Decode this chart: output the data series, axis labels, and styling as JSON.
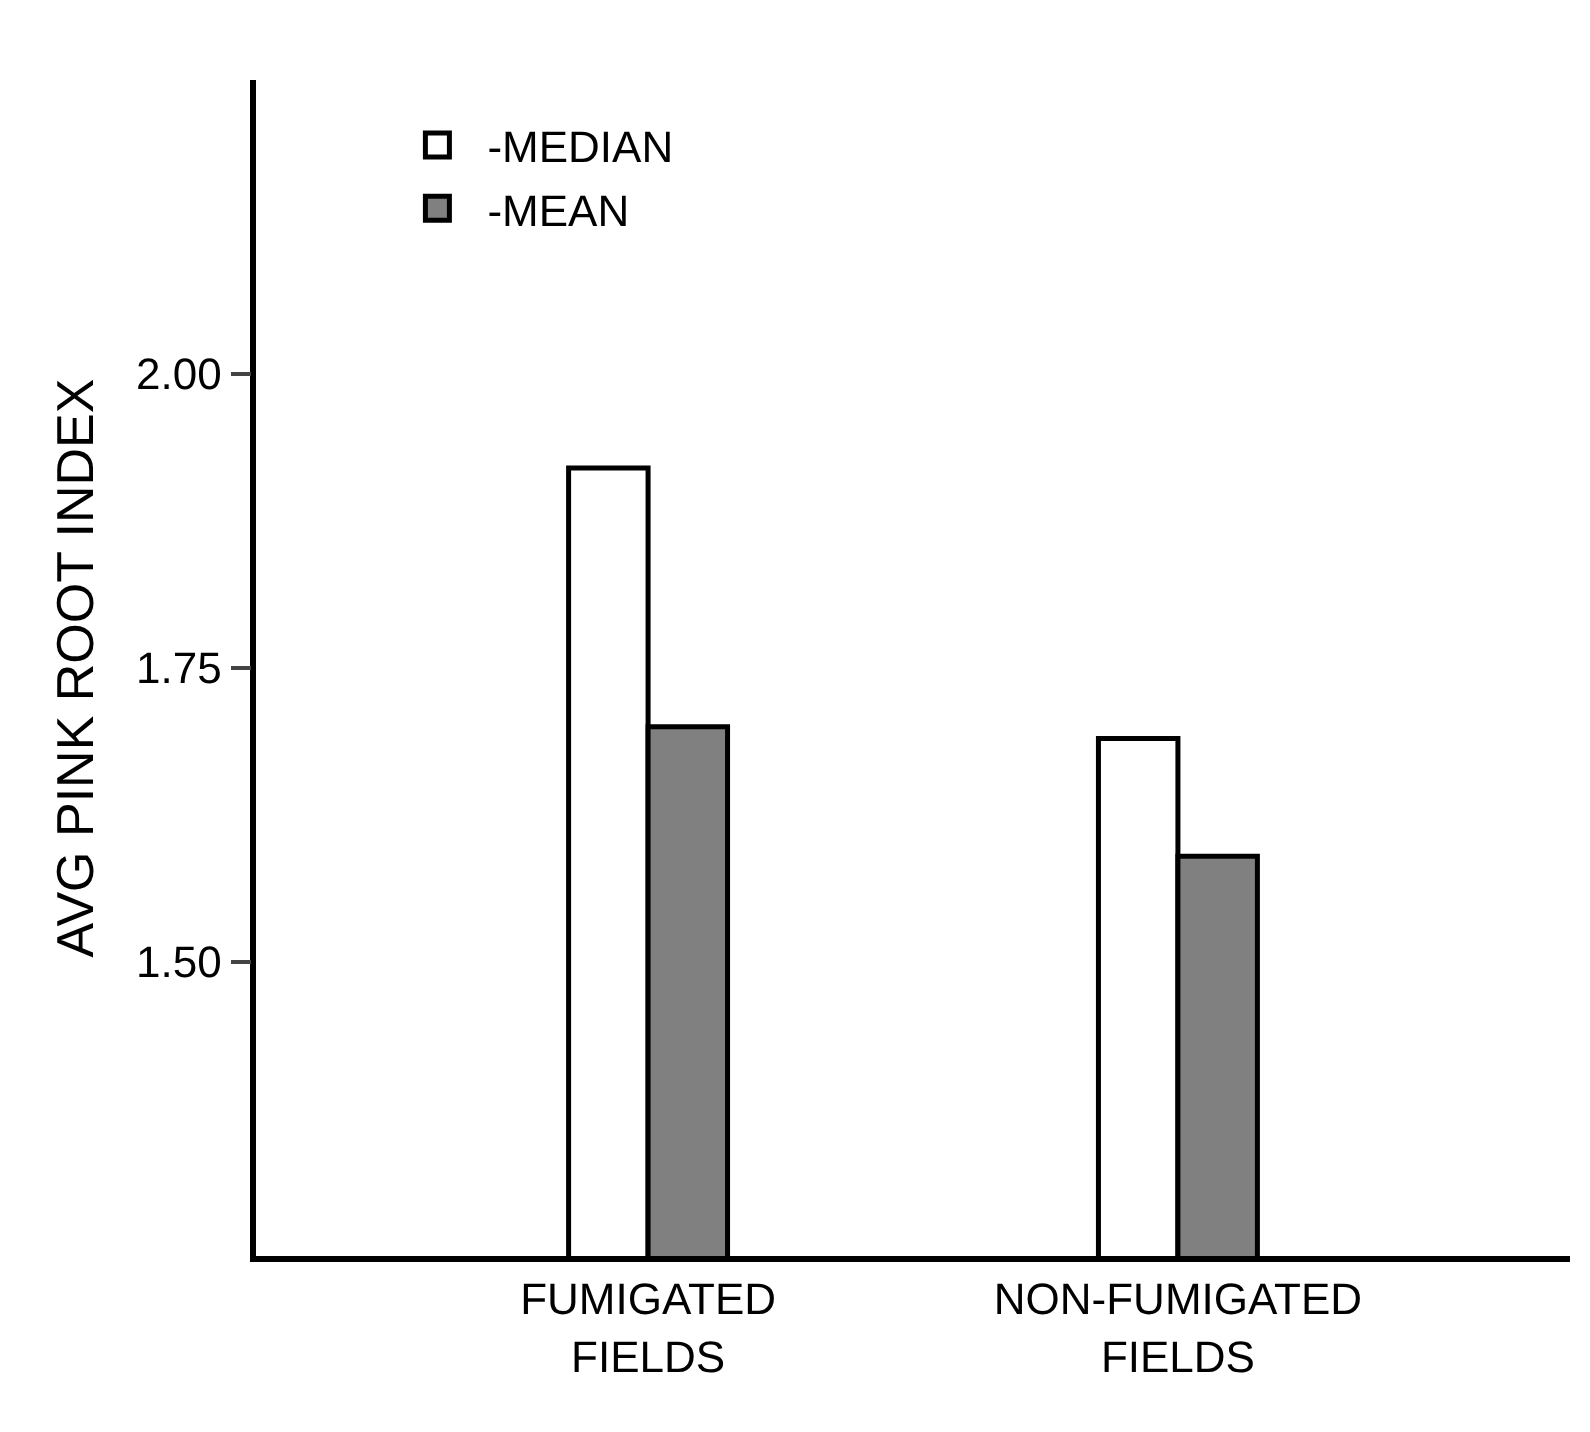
{
  "chart_data": {
    "type": "bar",
    "ylabel": "AVG PINK ROOT INDEX",
    "categories": [
      "FUMIGATED FIELDS",
      "NON-FUMIGATED FIELDS"
    ],
    "series": [
      {
        "name": "-MEDIAN",
        "color": "#ffffff",
        "values": [
          1.92,
          1.69
        ]
      },
      {
        "name": "-MEAN",
        "color": "#808080",
        "values": [
          1.7,
          1.59
        ]
      }
    ],
    "ylim": [
      1.25,
      2.25
    ],
    "yticks": [
      {
        "value": 1.5,
        "label": "1.50"
      },
      {
        "value": 1.75,
        "label": "1.75"
      },
      {
        "value": 2.0,
        "label": "2.00"
      }
    ],
    "grid": false,
    "legend": "top left"
  }
}
